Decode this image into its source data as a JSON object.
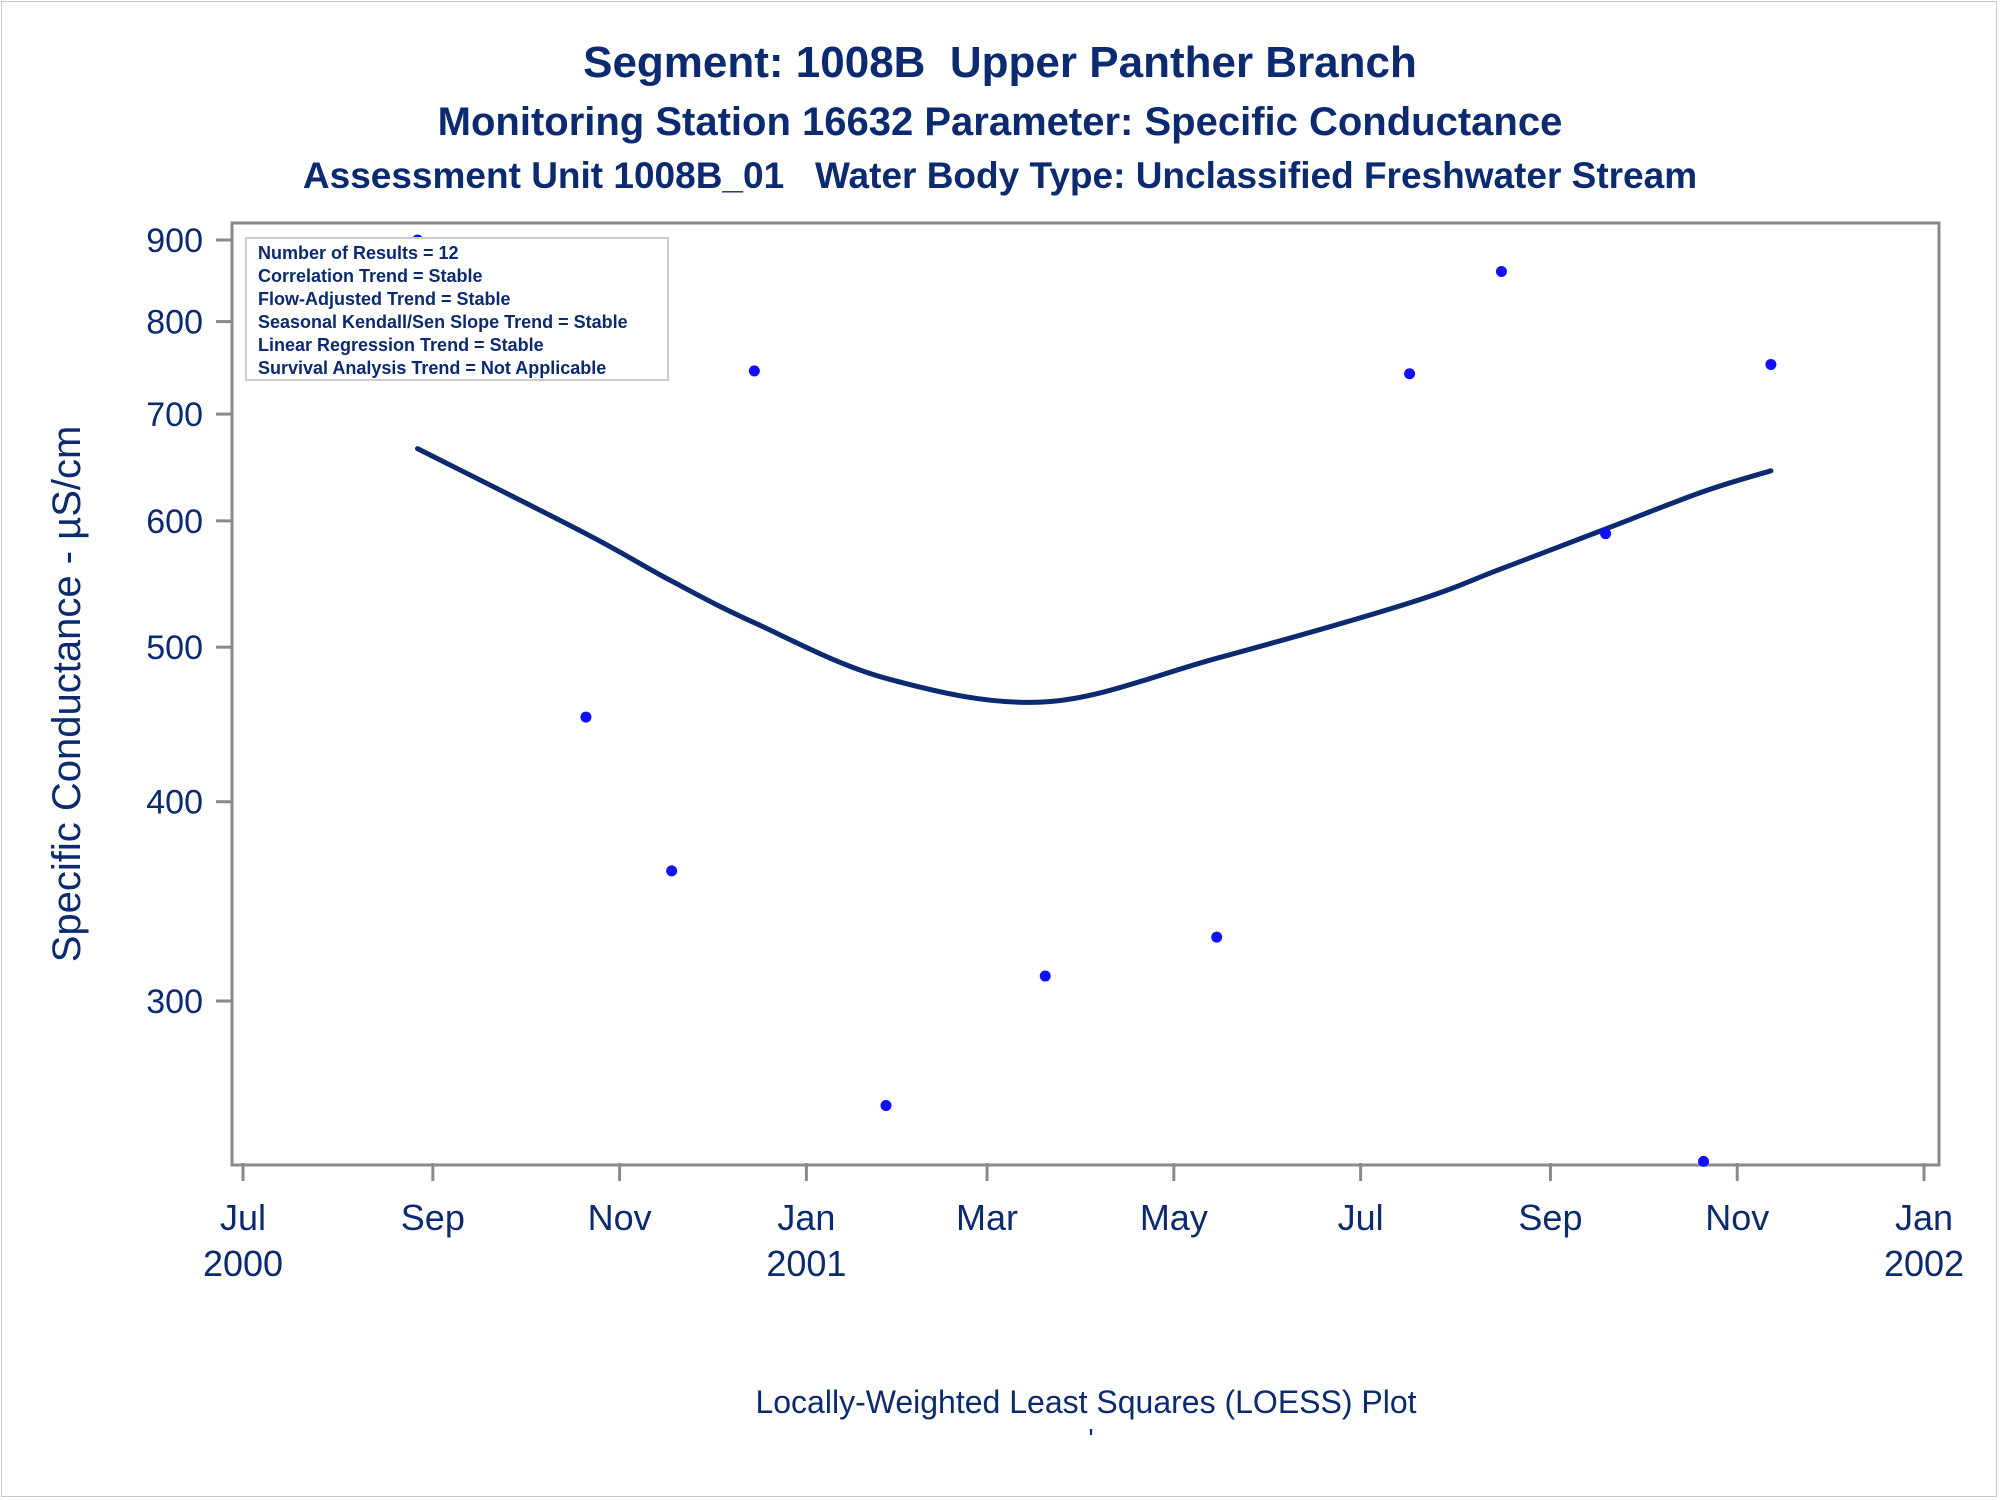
{
  "titles": {
    "line1": "Segment: 1008B  Upper Panther Branch",
    "line2": "Monitoring Station 16632 Parameter: Specific Conductance",
    "line3": "Assessment Unit 1008B_01   Water Body Type: Unclassified Freshwater Stream"
  },
  "footnote": {
    "text": "Locally-Weighted Least Squares (LOESS) Plot",
    "mark": "'"
  },
  "stats_box": {
    "lines": [
      "Number of Results = 12",
      "Correlation Trend = Stable",
      "Flow-Adjusted Trend = Stable",
      "Seasonal Kendall/Sen Slope Trend = Stable",
      "Linear Regression Trend = Stable",
      "Survival Analysis Trend = Not Applicable"
    ]
  },
  "colors": {
    "text": "#0b2a6f",
    "points": "#1010ff",
    "loess_line": "#0b2a6f",
    "axis": "#8a8a8a"
  },
  "chart_data": {
    "type": "scatter",
    "title": "Segment: 1008B  Upper Panther Branch",
    "ylabel": "Specific Conductance -  µS/cm",
    "xlabel": "",
    "y_scale": "log",
    "ylim": [
      225,
      920
    ],
    "xlim": [
      "2000-07-01",
      "2002-01-01"
    ],
    "y_ticks": [
      300,
      400,
      500,
      600,
      700,
      800,
      900
    ],
    "x_ticks": [
      {
        "date": "2000-07-01",
        "month": "Jul",
        "year": "2000"
      },
      {
        "date": "2000-09-01",
        "month": "Sep",
        "year": ""
      },
      {
        "date": "2000-11-01",
        "month": "Nov",
        "year": ""
      },
      {
        "date": "2001-01-01",
        "month": "Jan",
        "year": "2001"
      },
      {
        "date": "2001-03-01",
        "month": "Mar",
        "year": ""
      },
      {
        "date": "2001-05-01",
        "month": "May",
        "year": ""
      },
      {
        "date": "2001-07-01",
        "month": "Jul",
        "year": ""
      },
      {
        "date": "2001-09-01",
        "month": "Sep",
        "year": ""
      },
      {
        "date": "2001-11-01",
        "month": "Nov",
        "year": ""
      },
      {
        "date": "2002-01-01",
        "month": "Jan",
        "year": "2002"
      }
    ],
    "legend": "top-left",
    "grid": false,
    "series": [
      {
        "kind": "points",
        "points": [
          {
            "x": "2000-08-27",
            "y": 900
          },
          {
            "x": "2000-10-21",
            "y": 452
          },
          {
            "x": "2000-11-18",
            "y": 362
          },
          {
            "x": "2000-12-15",
            "y": 745
          },
          {
            "x": "2001-01-27",
            "y": 258
          },
          {
            "x": "2001-03-20",
            "y": 311
          },
          {
            "x": "2001-05-15",
            "y": 329
          },
          {
            "x": "2001-07-17",
            "y": 742
          },
          {
            "x": "2001-08-16",
            "y": 860
          },
          {
            "x": "2001-09-19",
            "y": 589
          },
          {
            "x": "2001-10-21",
            "y": 238
          },
          {
            "x": "2001-11-12",
            "y": 752
          }
        ]
      },
      {
        "kind": "loess",
        "points": [
          {
            "x": "2000-08-27",
            "y": 666
          },
          {
            "x": "2000-10-21",
            "y": 589
          },
          {
            "x": "2000-11-18",
            "y": 550
          },
          {
            "x": "2000-12-15",
            "y": 518
          },
          {
            "x": "2001-01-27",
            "y": 478
          },
          {
            "x": "2001-03-20",
            "y": 462
          },
          {
            "x": "2001-05-15",
            "y": 492
          },
          {
            "x": "2001-07-17",
            "y": 533
          },
          {
            "x": "2001-08-16",
            "y": 560
          },
          {
            "x": "2001-09-19",
            "y": 593
          },
          {
            "x": "2001-10-21",
            "y": 626
          },
          {
            "x": "2001-11-12",
            "y": 645
          }
        ]
      }
    ]
  }
}
